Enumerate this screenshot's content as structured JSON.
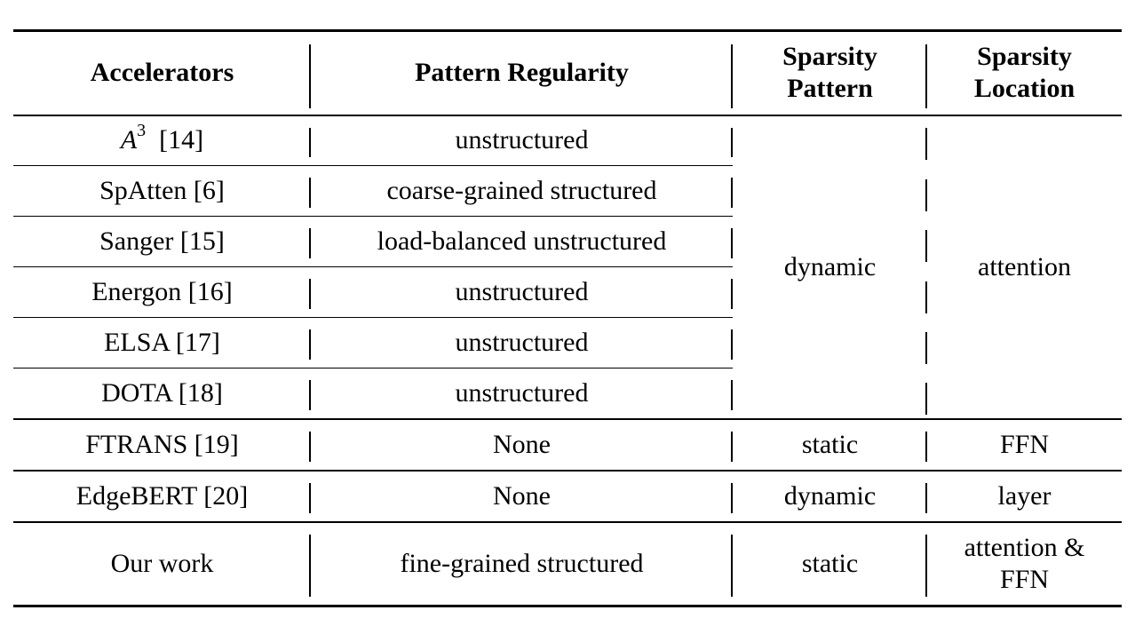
{
  "table": {
    "headers": {
      "accelerators": "Accelerators",
      "pattern_regularity": "Pattern Regularity",
      "sparsity_pattern_l1": "Sparsity",
      "sparsity_pattern_l2": "Pattern",
      "sparsity_location_l1": "Sparsity",
      "sparsity_location_l2": "Location"
    },
    "group1": {
      "sparsity_pattern": "dynamic",
      "sparsity_location": "attention",
      "rows": [
        {
          "acc_base": "A",
          "acc_sup": "3",
          "acc_ref": "[14]",
          "pattern": "unstructured"
        },
        {
          "acc": "SpAtten [6]",
          "pattern": "coarse-grained structured"
        },
        {
          "acc": "Sanger [15]",
          "pattern": "load-balanced unstructured"
        },
        {
          "acc": "Energon [16]",
          "pattern": "unstructured"
        },
        {
          "acc": "ELSA [17]",
          "pattern": "unstructured"
        },
        {
          "acc": "DOTA [18]",
          "pattern": "unstructured"
        }
      ]
    },
    "ftrans": {
      "acc": "FTRANS [19]",
      "pattern": "None",
      "sparsity_pattern": "static",
      "sparsity_location": "FFN"
    },
    "edgebert": {
      "acc": "EdgeBERT [20]",
      "pattern": "None",
      "sparsity_pattern": "dynamic",
      "sparsity_location": "layer"
    },
    "ours": {
      "acc": "Our work",
      "pattern": "fine-grained structured",
      "sparsity_pattern": "static",
      "sparsity_location_l1": "attention &",
      "sparsity_location_l2": "FFN"
    }
  }
}
